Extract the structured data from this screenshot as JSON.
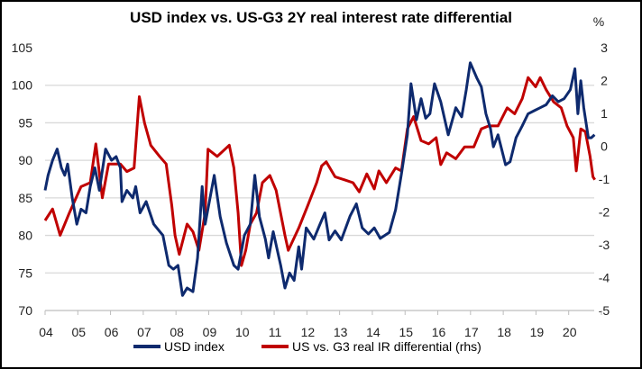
{
  "chart_data": {
    "type": "line",
    "title": "USD index vs. US-G3 2Y real interest rate differential",
    "xlabel": "",
    "ylabel": "",
    "y2label": "%",
    "xlim": [
      2004,
      2021
    ],
    "ylim": [
      70,
      105
    ],
    "y2lim": [
      -5,
      3
    ],
    "x_ticks": [
      "04",
      "05",
      "06",
      "07",
      "08",
      "09",
      "10",
      "11",
      "12",
      "13",
      "14",
      "15",
      "16",
      "17",
      "18",
      "19",
      "20"
    ],
    "y_ticks": [
      "70",
      "75",
      "80",
      "85",
      "90",
      "95",
      "100",
      "105"
    ],
    "y2_ticks": [
      "-5",
      "-4",
      "-3",
      "-2",
      "-1",
      "0",
      "1",
      "2",
      "3"
    ],
    "grid": true,
    "legend_position": "bottom",
    "colors": {
      "usd": "#0e2a6e",
      "diff": "#c00000"
    },
    "series": [
      {
        "name": "USD index",
        "axis": "left",
        "x": [
          2004.0,
          2004.09,
          2004.23,
          2004.37,
          2004.5,
          2004.6,
          2004.69,
          2004.83,
          2004.97,
          2005.1,
          2005.25,
          2005.38,
          2005.52,
          2005.66,
          2005.85,
          2006.03,
          2006.17,
          2006.3,
          2006.35,
          2006.5,
          2006.68,
          2006.77,
          2006.9,
          2007.09,
          2007.32,
          2007.6,
          2007.78,
          2007.92,
          2008.06,
          2008.2,
          2008.34,
          2008.52,
          2008.66,
          2008.8,
          2008.89,
          2009.17,
          2009.35,
          2009.54,
          2009.77,
          2009.9,
          2010.09,
          2010.27,
          2010.41,
          2010.55,
          2010.73,
          2010.83,
          2010.97,
          2011.2,
          2011.33,
          2011.47,
          2011.61,
          2011.75,
          2011.84,
          2011.98,
          2012.21,
          2012.4,
          2012.55,
          2012.68,
          2012.86,
          2013.05,
          2013.32,
          2013.51,
          2013.69,
          2013.88,
          2014.06,
          2014.24,
          2014.52,
          2014.71,
          2014.89,
          2015.07,
          2015.18,
          2015.35,
          2015.49,
          2015.63,
          2015.76,
          2015.9,
          2016.09,
          2016.32,
          2016.55,
          2016.73,
          2016.87,
          2016.99,
          2017.19,
          2017.33,
          2017.47,
          2017.61,
          2017.7,
          2017.84,
          2018.07,
          2018.21,
          2018.39,
          2018.58,
          2018.76,
          2018.94,
          2019.13,
          2019.31,
          2019.5,
          2019.68,
          2019.86,
          2020.05,
          2020.19,
          2020.28,
          2020.37,
          2020.46,
          2020.6,
          2020.69,
          2020.79
        ],
        "values": [
          86,
          88,
          90,
          91.5,
          89,
          88,
          89.5,
          85,
          81.5,
          83.5,
          83,
          86.5,
          89,
          86,
          91.5,
          90,
          90.5,
          89,
          84.5,
          86,
          85,
          86.5,
          83,
          84.5,
          81.5,
          80,
          76,
          75.5,
          76,
          72,
          73,
          72.5,
          77,
          86.5,
          81.5,
          88,
          82.5,
          79,
          76,
          75.5,
          80,
          81.5,
          88,
          82.5,
          79.5,
          77,
          80.5,
          76,
          73,
          75,
          74,
          78.5,
          75.5,
          81,
          79.5,
          81.5,
          83,
          79.4,
          80.6,
          79.4,
          82.6,
          84.2,
          81,
          80.2,
          81,
          79.6,
          80.4,
          83.4,
          88.2,
          93.4,
          100.2,
          95.4,
          98.2,
          95.6,
          96.2,
          100.2,
          97.8,
          93.4,
          97,
          95.8,
          99.4,
          103,
          101,
          99.8,
          96.2,
          94.2,
          91.8,
          93.4,
          89.4,
          89.8,
          93,
          94.6,
          96.2,
          96.6,
          97,
          97.4,
          98.6,
          97.8,
          98.2,
          99.4,
          102.2,
          96.2,
          100.6,
          97,
          93,
          93,
          93.4
        ]
      },
      {
        "name": "US vs. G3 real IR differential (rhs)",
        "axis": "right",
        "x": [
          2004.0,
          2004.23,
          2004.46,
          2004.74,
          2005.1,
          2005.38,
          2005.55,
          2005.75,
          2005.94,
          2006.3,
          2006.5,
          2006.72,
          2006.88,
          2007.04,
          2007.23,
          2007.5,
          2007.7,
          2007.87,
          2007.97,
          2008.1,
          2008.34,
          2008.52,
          2008.7,
          2008.89,
          2008.98,
          2009.26,
          2009.63,
          2009.77,
          2009.9,
          2010.0,
          2010.13,
          2010.27,
          2010.46,
          2010.64,
          2010.87,
          2011.06,
          2011.33,
          2011.43,
          2011.75,
          2012.03,
          2012.3,
          2012.45,
          2012.59,
          2012.86,
          2013.14,
          2013.41,
          2013.6,
          2013.83,
          2014.06,
          2014.2,
          2014.43,
          2014.71,
          2014.89,
          2015.07,
          2015.26,
          2015.49,
          2015.72,
          2015.95,
          2016.09,
          2016.27,
          2016.55,
          2016.82,
          2017.1,
          2017.33,
          2017.56,
          2017.84,
          2018.12,
          2018.35,
          2018.58,
          2018.76,
          2018.99,
          2019.13,
          2019.31,
          2019.54,
          2019.77,
          2019.95,
          2020.14,
          2020.23,
          2020.37,
          2020.51,
          2020.65,
          2020.74,
          2020.8
        ],
        "values": [
          -2.26,
          -1.91,
          -2.71,
          -2.03,
          -1.23,
          -1.11,
          0.07,
          -1.57,
          -0.54,
          -0.54,
          -0.77,
          -0.66,
          1.51,
          0.71,
          0.03,
          -0.31,
          -0.54,
          -1.8,
          -2.71,
          -3.29,
          -2.37,
          -2.6,
          -3.17,
          -2.03,
          -0.09,
          -0.31,
          0.03,
          -0.66,
          -2.03,
          -3.63,
          -3.17,
          -2.37,
          -2.03,
          -1.11,
          -0.89,
          -1.34,
          -2.71,
          -3.17,
          -2.49,
          -1.8,
          -1.11,
          -0.6,
          -0.47,
          -0.93,
          -1.02,
          -1.11,
          -1.39,
          -0.84,
          -1.3,
          -0.75,
          -1.11,
          -0.66,
          -0.75,
          0.53,
          0.9,
          0.17,
          0.07,
          0.26,
          -0.56,
          -0.2,
          -0.38,
          -0.02,
          -0.02,
          0.53,
          0.62,
          0.62,
          1.17,
          0.99,
          1.45,
          2.09,
          1.81,
          2.09,
          1.72,
          1.35,
          1.17,
          0.62,
          0.26,
          -0.75,
          0.53,
          0.44,
          -0.29,
          -0.93,
          -1.02
        ]
      }
    ]
  }
}
